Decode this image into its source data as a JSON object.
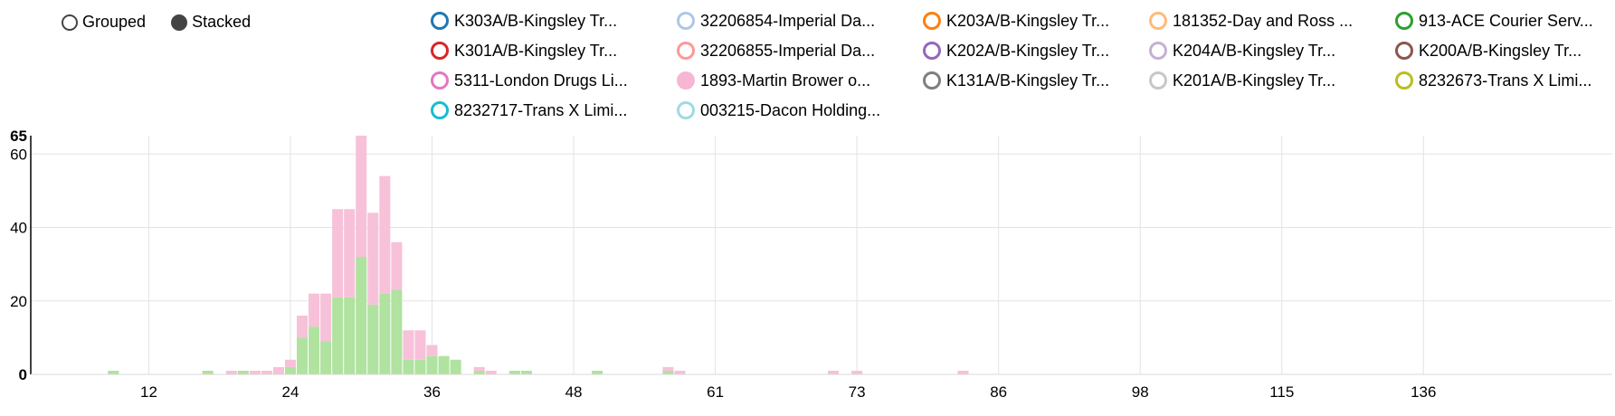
{
  "controls": {
    "grouped_label": "Grouped",
    "stacked_label": "Stacked",
    "selected": "Stacked"
  },
  "legend": [
    {
      "label": "K303A/B-Kingsley Tr...",
      "color": "#1f77b4",
      "filled": false
    },
    {
      "label": "32206854-Imperial Da...",
      "color": "#aec7e8",
      "filled": false
    },
    {
      "label": "K203A/B-Kingsley Tr...",
      "color": "#ff7f0e",
      "filled": false
    },
    {
      "label": "181352-Day and Ross ...",
      "color": "#ffbb78",
      "filled": false
    },
    {
      "label": "913-ACE Courier Serv...",
      "color": "#2ca02c",
      "filled": false
    },
    {
      "label": "K301A/B-Kingsley Tr...",
      "color": "#d62728",
      "filled": false
    },
    {
      "label": "32206855-Imperial Da...",
      "color": "#ff9896",
      "filled": false
    },
    {
      "label": "K202A/B-Kingsley Tr...",
      "color": "#9467bd",
      "filled": false
    },
    {
      "label": "K204A/B-Kingsley Tr...",
      "color": "#c5b0d5",
      "filled": false
    },
    {
      "label": "K200A/B-Kingsley Tr...",
      "color": "#8c564b",
      "filled": false
    },
    {
      "label": "5311-London Drugs Li...",
      "color": "#e377c2",
      "filled": false
    },
    {
      "label": "1893-Martin Brower o...",
      "color": "#f7b6d2",
      "filled": true
    },
    {
      "label": "K131A/B-Kingsley Tr...",
      "color": "#7f7f7f",
      "filled": false
    },
    {
      "label": "K201A/B-Kingsley Tr...",
      "color": "#c7c7c7",
      "filled": false
    },
    {
      "label": "8232673-Trans X Limi...",
      "color": "#bcbd22",
      "filled": false
    },
    {
      "label": "8232717-Trans X Limi...",
      "color": "#17becf",
      "filled": false
    },
    {
      "label": "003215-Dacon Holding...",
      "color": "#9edae5",
      "filled": false
    }
  ],
  "chart_data": {
    "type": "bar",
    "stacked": true,
    "ylim": [
      0,
      65
    ],
    "xlim": [
      2,
      136
    ],
    "x_tick_labels": [
      "12",
      "24",
      "36",
      "48",
      "61",
      "73",
      "86",
      "98",
      "115",
      "136"
    ],
    "x_tick_positions": [
      12,
      24,
      36,
      48,
      60,
      72,
      84,
      96,
      108,
      120
    ],
    "y_ticks": [
      0,
      20,
      40,
      60
    ],
    "y_max_label": "65",
    "x": [
      9,
      17,
      19,
      20,
      21,
      22,
      23,
      24,
      25,
      26,
      27,
      28,
      29,
      30,
      31,
      32,
      33,
      34,
      35,
      36,
      37,
      38,
      40,
      41,
      43,
      44,
      50,
      56,
      57,
      70,
      72,
      81
    ],
    "series": [
      {
        "name": "913-ACE Courier Serv...",
        "color": "#b0e2a0",
        "values": [
          1,
          1,
          0,
          1,
          0,
          0,
          0,
          2,
          10,
          13,
          9,
          21,
          21,
          32,
          19,
          22,
          23,
          4,
          4,
          5,
          5,
          4,
          1,
          0,
          1,
          1,
          1,
          1,
          0,
          0,
          0,
          0
        ]
      },
      {
        "name": "1893-Martin Brower o...",
        "color": "#f7c1d9",
        "values": [
          0,
          0,
          1,
          0,
          1,
          1,
          2,
          2,
          6,
          9,
          13,
          24,
          24,
          33,
          25,
          32,
          13,
          8,
          8,
          3,
          0,
          0,
          1,
          1,
          0,
          0,
          0,
          1,
          1,
          1,
          1,
          1
        ]
      }
    ]
  }
}
